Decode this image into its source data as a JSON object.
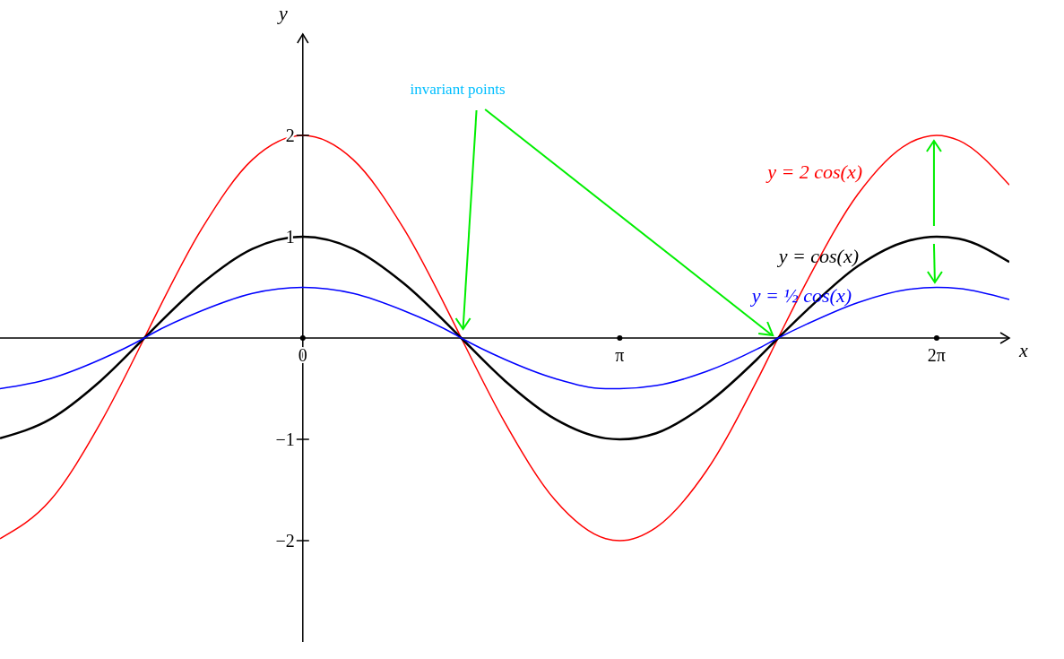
{
  "chart_data": {
    "type": "line",
    "xlabel": "x",
    "ylabel": "y",
    "x": [
      -3,
      -2.5,
      -2,
      -1.57,
      -1.5,
      -1,
      -0.5,
      0,
      0.5,
      1,
      1.5,
      1.57,
      2,
      2.5,
      3,
      3.14,
      3.5,
      4,
      4.5,
      4.71,
      5,
      5.5,
      6,
      6.28,
      6.5,
      7
    ],
    "series": [
      {
        "name": "y = 2 cos(x)",
        "color": "#ff0000",
        "values": [
          -1.98,
          -1.6,
          -0.83,
          0,
          0.14,
          1.08,
          1.76,
          2,
          1.76,
          1.08,
          0.14,
          0,
          -0.83,
          -1.6,
          -1.98,
          -2,
          -1.87,
          -1.31,
          -0.42,
          0,
          0.57,
          1.42,
          1.92,
          2,
          1.95,
          1.51
        ]
      },
      {
        "name": "y = cos(x)",
        "color": "#000000",
        "values": [
          -0.99,
          -0.8,
          -0.42,
          0,
          0.07,
          0.54,
          0.88,
          1,
          0.88,
          0.54,
          0.07,
          0,
          -0.42,
          -0.8,
          -0.99,
          -1,
          -0.94,
          -0.65,
          -0.21,
          0,
          0.28,
          0.71,
          0.96,
          1,
          0.98,
          0.75
        ]
      },
      {
        "name": "y = ½ cos(x)",
        "color": "#0000ff",
        "values": [
          -0.5,
          -0.4,
          -0.21,
          0,
          0.04,
          0.27,
          0.44,
          0.5,
          0.44,
          0.27,
          0.04,
          0,
          -0.21,
          -0.4,
          -0.5,
          -0.5,
          -0.47,
          -0.33,
          -0.11,
          0,
          0.14,
          0.35,
          0.48,
          0.5,
          0.49,
          0.38
        ]
      }
    ],
    "xlim": [
      -3,
      7
    ],
    "ylim": [
      -3,
      3
    ],
    "xticks": [
      0,
      {
        "value": 3.14,
        "label": "π"
      },
      {
        "value": 6.28,
        "label": "2π"
      }
    ],
    "yticks": [
      {
        "value": -2,
        "label": "−2"
      },
      {
        "value": -1,
        "label": "−1"
      },
      1,
      2
    ],
    "annotations": [
      "invariant points"
    ],
    "marker": "none",
    "line_style": "solid",
    "legend": false
  }
}
